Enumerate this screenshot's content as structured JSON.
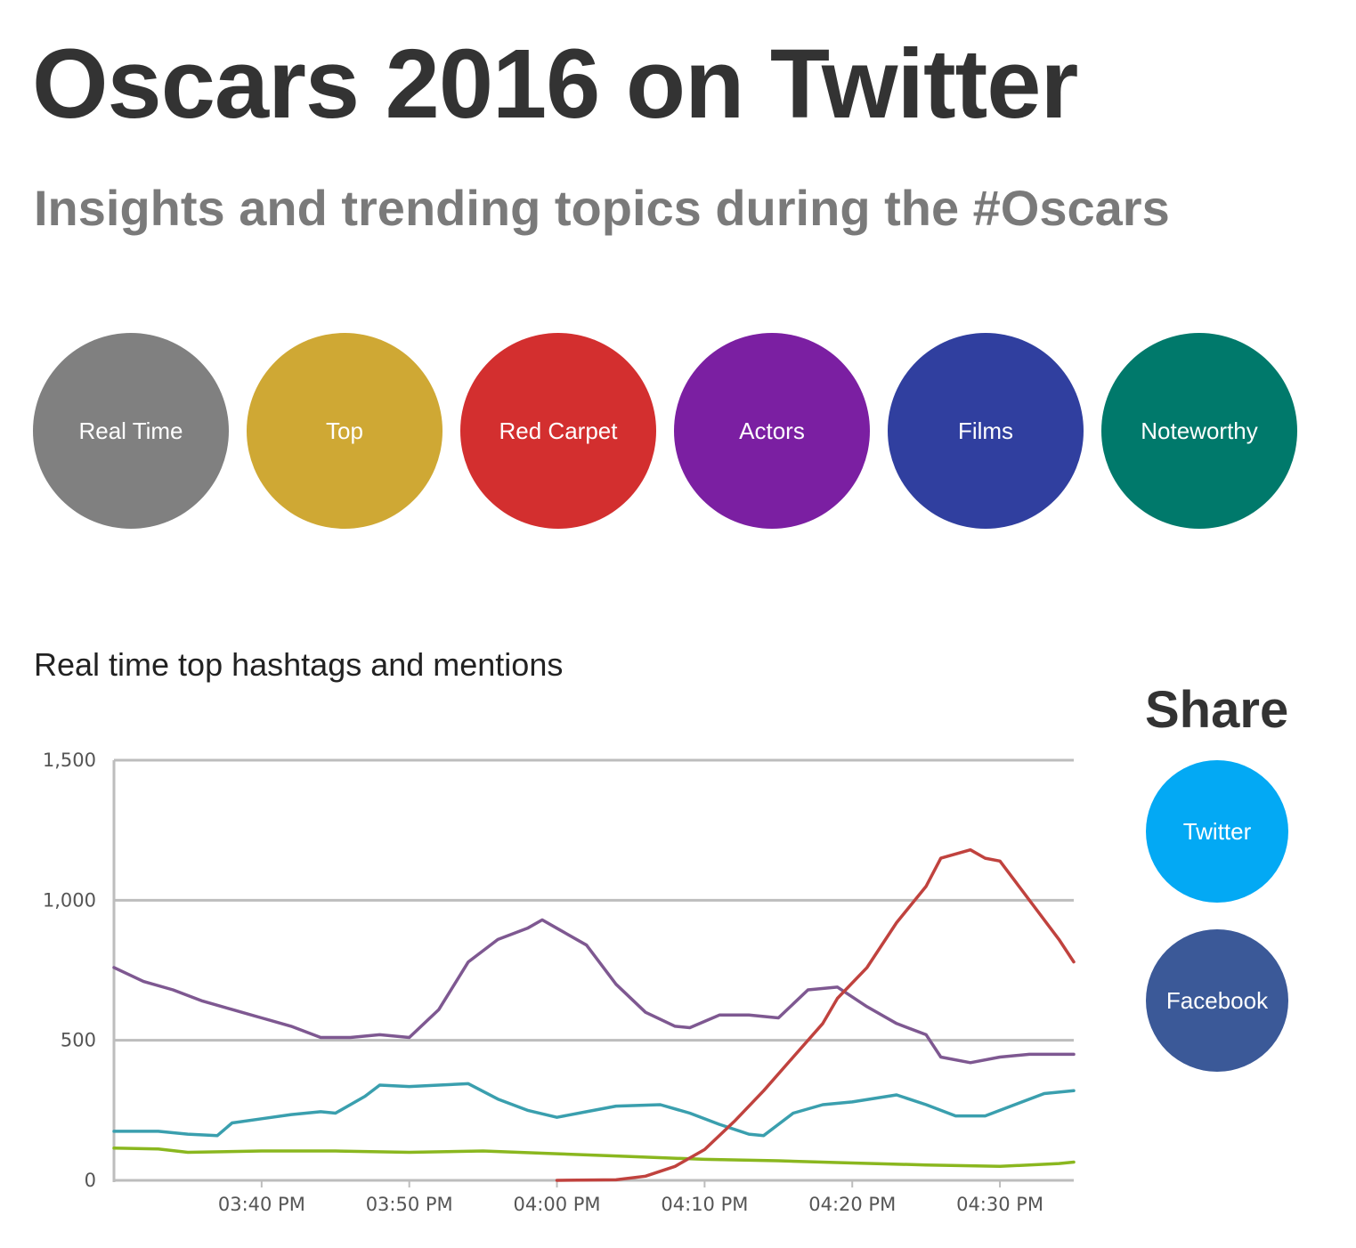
{
  "header": {
    "title": "Oscars 2016 on Twitter",
    "subtitle": "Insights and trending topics during the #Oscars"
  },
  "categories": [
    {
      "label": "Real Time",
      "color": "#808080"
    },
    {
      "label": "Top",
      "color": "#CFA834"
    },
    {
      "label": "Red Carpet",
      "color": "#D32F2F"
    },
    {
      "label": "Actors",
      "color": "#7B1FA2"
    },
    {
      "label": "Films",
      "color": "#303F9F"
    },
    {
      "label": "Noteworthy",
      "color": "#00796B"
    }
  ],
  "chart_section": {
    "heading": "Real time top hashtags and mentions"
  },
  "share": {
    "heading": "Share",
    "twitter_label": "Twitter",
    "twitter_color": "#03A9F4",
    "facebook_label": "Facebook",
    "facebook_color": "#3B5998"
  },
  "chart_data": {
    "type": "line",
    "title": "Real time top hashtags and mentions",
    "xlabel": "",
    "ylabel": "",
    "ylim": [
      0,
      1500
    ],
    "yticks": [
      0,
      500,
      1000,
      1500
    ],
    "ytick_labels": [
      "0",
      "500",
      "1,000",
      "1,500"
    ],
    "x_range": [
      "03:30 PM",
      "04:35 PM"
    ],
    "xtick_labels": [
      "03:40 PM",
      "03:50 PM",
      "04:00 PM",
      "04:10 PM",
      "04:20 PM",
      "04:30 PM"
    ],
    "grid": true,
    "series": [
      {
        "color": "#7E5891",
        "points": [
          [
            "03:30 PM",
            760
          ],
          [
            "03:32 PM",
            710
          ],
          [
            "03:34 PM",
            680
          ],
          [
            "03:36 PM",
            640
          ],
          [
            "03:38 PM",
            610
          ],
          [
            "03:40 PM",
            580
          ],
          [
            "03:42 PM",
            550
          ],
          [
            "03:44 PM",
            510
          ],
          [
            "03:46 PM",
            510
          ],
          [
            "03:48 PM",
            520
          ],
          [
            "03:50 PM",
            510
          ],
          [
            "03:52 PM",
            610
          ],
          [
            "03:54 PM",
            780
          ],
          [
            "03:56 PM",
            860
          ],
          [
            "03:58 PM",
            900
          ],
          [
            "03:59 PM",
            930
          ],
          [
            "04:00 PM",
            900
          ],
          [
            "04:02 PM",
            840
          ],
          [
            "04:04 PM",
            700
          ],
          [
            "04:06 PM",
            600
          ],
          [
            "04:08 PM",
            550
          ],
          [
            "04:09 PM",
            545
          ],
          [
            "04:11 PM",
            590
          ],
          [
            "04:13 PM",
            590
          ],
          [
            "04:15 PM",
            580
          ],
          [
            "04:17 PM",
            680
          ],
          [
            "04:19 PM",
            690
          ],
          [
            "04:21 PM",
            620
          ],
          [
            "04:23 PM",
            560
          ],
          [
            "04:25 PM",
            520
          ],
          [
            "04:26 PM",
            440
          ],
          [
            "04:28 PM",
            420
          ],
          [
            "04:30 PM",
            440
          ],
          [
            "04:32 PM",
            450
          ],
          [
            "04:34 PM",
            450
          ],
          [
            "04:35 PM",
            450
          ]
        ]
      },
      {
        "color": "#3A9FAE",
        "points": [
          [
            "03:30 PM",
            175
          ],
          [
            "03:33 PM",
            175
          ],
          [
            "03:35 PM",
            165
          ],
          [
            "03:37 PM",
            160
          ],
          [
            "03:38 PM",
            205
          ],
          [
            "03:40 PM",
            220
          ],
          [
            "03:42 PM",
            235
          ],
          [
            "03:44 PM",
            245
          ],
          [
            "03:45 PM",
            240
          ],
          [
            "03:47 PM",
            300
          ],
          [
            "03:48 PM",
            340
          ],
          [
            "03:50 PM",
            335
          ],
          [
            "03:52 PM",
            340
          ],
          [
            "03:54 PM",
            345
          ],
          [
            "03:56 PM",
            290
          ],
          [
            "03:58 PM",
            250
          ],
          [
            "04:00 PM",
            225
          ],
          [
            "04:02 PM",
            245
          ],
          [
            "04:04 PM",
            265
          ],
          [
            "04:07 PM",
            270
          ],
          [
            "04:09 PM",
            240
          ],
          [
            "04:11 PM",
            200
          ],
          [
            "04:13 PM",
            165
          ],
          [
            "04:14 PM",
            160
          ],
          [
            "04:16 PM",
            240
          ],
          [
            "04:18 PM",
            270
          ],
          [
            "04:20 PM",
            280
          ],
          [
            "04:23 PM",
            305
          ],
          [
            "04:25 PM",
            270
          ],
          [
            "04:27 PM",
            230
          ],
          [
            "04:29 PM",
            230
          ],
          [
            "04:31 PM",
            270
          ],
          [
            "04:33 PM",
            310
          ],
          [
            "04:35 PM",
            320
          ]
        ]
      },
      {
        "color": "#8AB71F",
        "points": [
          [
            "03:30 PM",
            115
          ],
          [
            "03:33 PM",
            112
          ],
          [
            "03:35 PM",
            100
          ],
          [
            "03:40 PM",
            105
          ],
          [
            "03:45 PM",
            105
          ],
          [
            "03:50 PM",
            100
          ],
          [
            "03:55 PM",
            105
          ],
          [
            "04:00 PM",
            95
          ],
          [
            "04:05 PM",
            85
          ],
          [
            "04:10 PM",
            75
          ],
          [
            "04:15 PM",
            70
          ],
          [
            "04:20 PM",
            62
          ],
          [
            "04:25 PM",
            55
          ],
          [
            "04:30 PM",
            50
          ],
          [
            "04:34 PM",
            60
          ],
          [
            "04:35 PM",
            65
          ]
        ]
      },
      {
        "color": "#C0423E",
        "points": [
          [
            "04:00 PM",
            0
          ],
          [
            "04:04 PM",
            2
          ],
          [
            "04:06 PM",
            15
          ],
          [
            "04:08 PM",
            50
          ],
          [
            "04:10 PM",
            110
          ],
          [
            "04:12 PM",
            210
          ],
          [
            "04:14 PM",
            320
          ],
          [
            "04:16 PM",
            440
          ],
          [
            "04:18 PM",
            560
          ],
          [
            "04:19 PM",
            650
          ],
          [
            "04:21 PM",
            760
          ],
          [
            "04:23 PM",
            920
          ],
          [
            "04:25 PM",
            1050
          ],
          [
            "04:26 PM",
            1150
          ],
          [
            "04:28 PM",
            1180
          ],
          [
            "04:29 PM",
            1150
          ],
          [
            "04:30 PM",
            1140
          ],
          [
            "04:32 PM",
            1000
          ],
          [
            "04:34 PM",
            860
          ],
          [
            "04:35 PM",
            780
          ]
        ]
      }
    ]
  }
}
